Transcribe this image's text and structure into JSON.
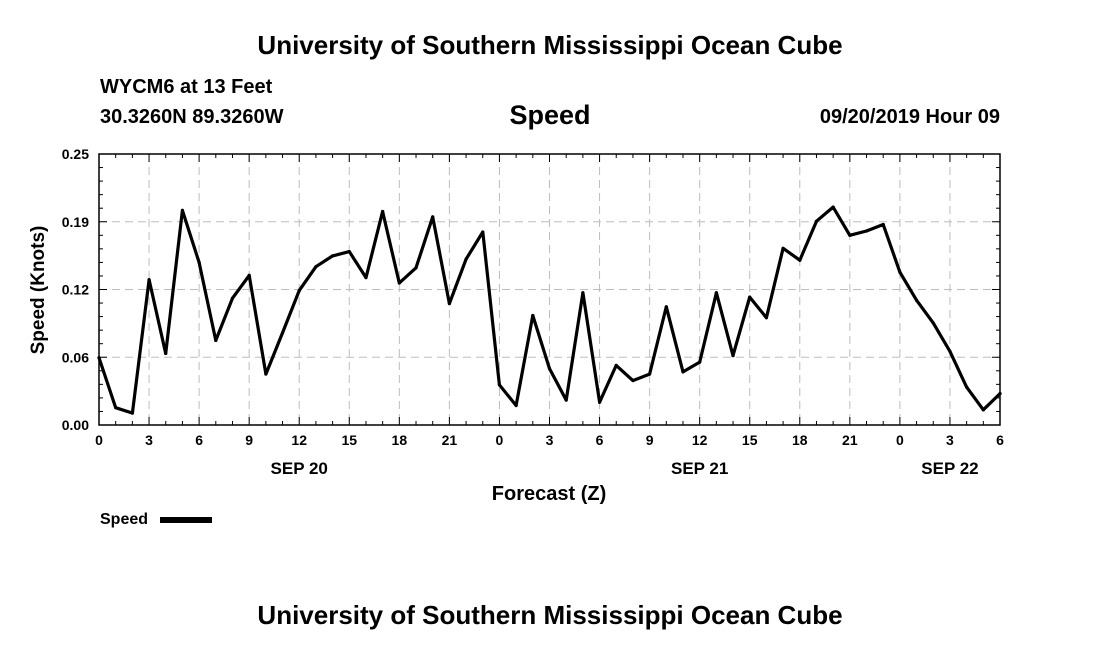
{
  "header": {
    "title": "University of Southern Mississippi Ocean Cube",
    "station": "WYCM6 at 13 Feet",
    "location": "30.3260N 89.3260W",
    "timestamp": "09/20/2019 Hour 09"
  },
  "footer": {
    "title": "University of Southern Mississippi Ocean Cube"
  },
  "legend": {
    "label": "Speed"
  },
  "colors": {
    "line": "#000000",
    "grid": "#bdbdbd",
    "background": "#ffffff"
  },
  "chart_data": {
    "type": "line",
    "title": "Speed",
    "xlabel": "Forecast (Z)",
    "ylabel": "Speed (Knots)",
    "ylim": [
      0.0,
      0.25
    ],
    "xlim": [
      0,
      54
    ],
    "y_ticks": [
      "0.00",
      "0.06",
      "0.12",
      "0.19",
      "0.25"
    ],
    "x_tick_labels": [
      "0",
      "3",
      "6",
      "9",
      "12",
      "15",
      "18",
      "21",
      "0",
      "3",
      "6",
      "9",
      "12",
      "15",
      "18",
      "21",
      "0",
      "3",
      "6"
    ],
    "date_labels": [
      {
        "label": "SEP 20",
        "at": 12
      },
      {
        "label": "SEP 21",
        "at": 36
      },
      {
        "label": "SEP 22",
        "at": 51
      }
    ],
    "grid": true,
    "legend_position": "bottom-left",
    "series": [
      {
        "name": "Speed",
        "x": [
          0,
          1,
          2,
          3,
          4,
          5,
          6,
          7,
          8,
          9,
          10,
          11,
          12,
          13,
          14,
          15,
          16,
          17,
          18,
          19,
          20,
          21,
          22,
          23,
          24,
          25,
          26,
          27,
          28,
          29,
          30,
          31,
          32,
          33,
          34,
          35,
          36,
          37,
          38,
          39,
          40,
          41,
          42,
          43,
          44,
          45,
          46,
          47,
          48,
          49,
          50,
          51,
          52,
          53,
          54
        ],
        "values": [
          0.062,
          0.016,
          0.011,
          0.134,
          0.066,
          0.198,
          0.15,
          0.078,
          0.117,
          0.138,
          0.047,
          0.085,
          0.124,
          0.146,
          0.156,
          0.16,
          0.136,
          0.197,
          0.131,
          0.145,
          0.192,
          0.112,
          0.153,
          0.178,
          0.037,
          0.018,
          0.101,
          0.052,
          0.023,
          0.122,
          0.021,
          0.055,
          0.041,
          0.047,
          0.109,
          0.049,
          0.058,
          0.122,
          0.064,
          0.118,
          0.099,
          0.163,
          0.152,
          0.188,
          0.201,
          0.175,
          0.179,
          0.185,
          0.141,
          0.115,
          0.094,
          0.068,
          0.035,
          0.014,
          0.029
        ]
      }
    ]
  }
}
